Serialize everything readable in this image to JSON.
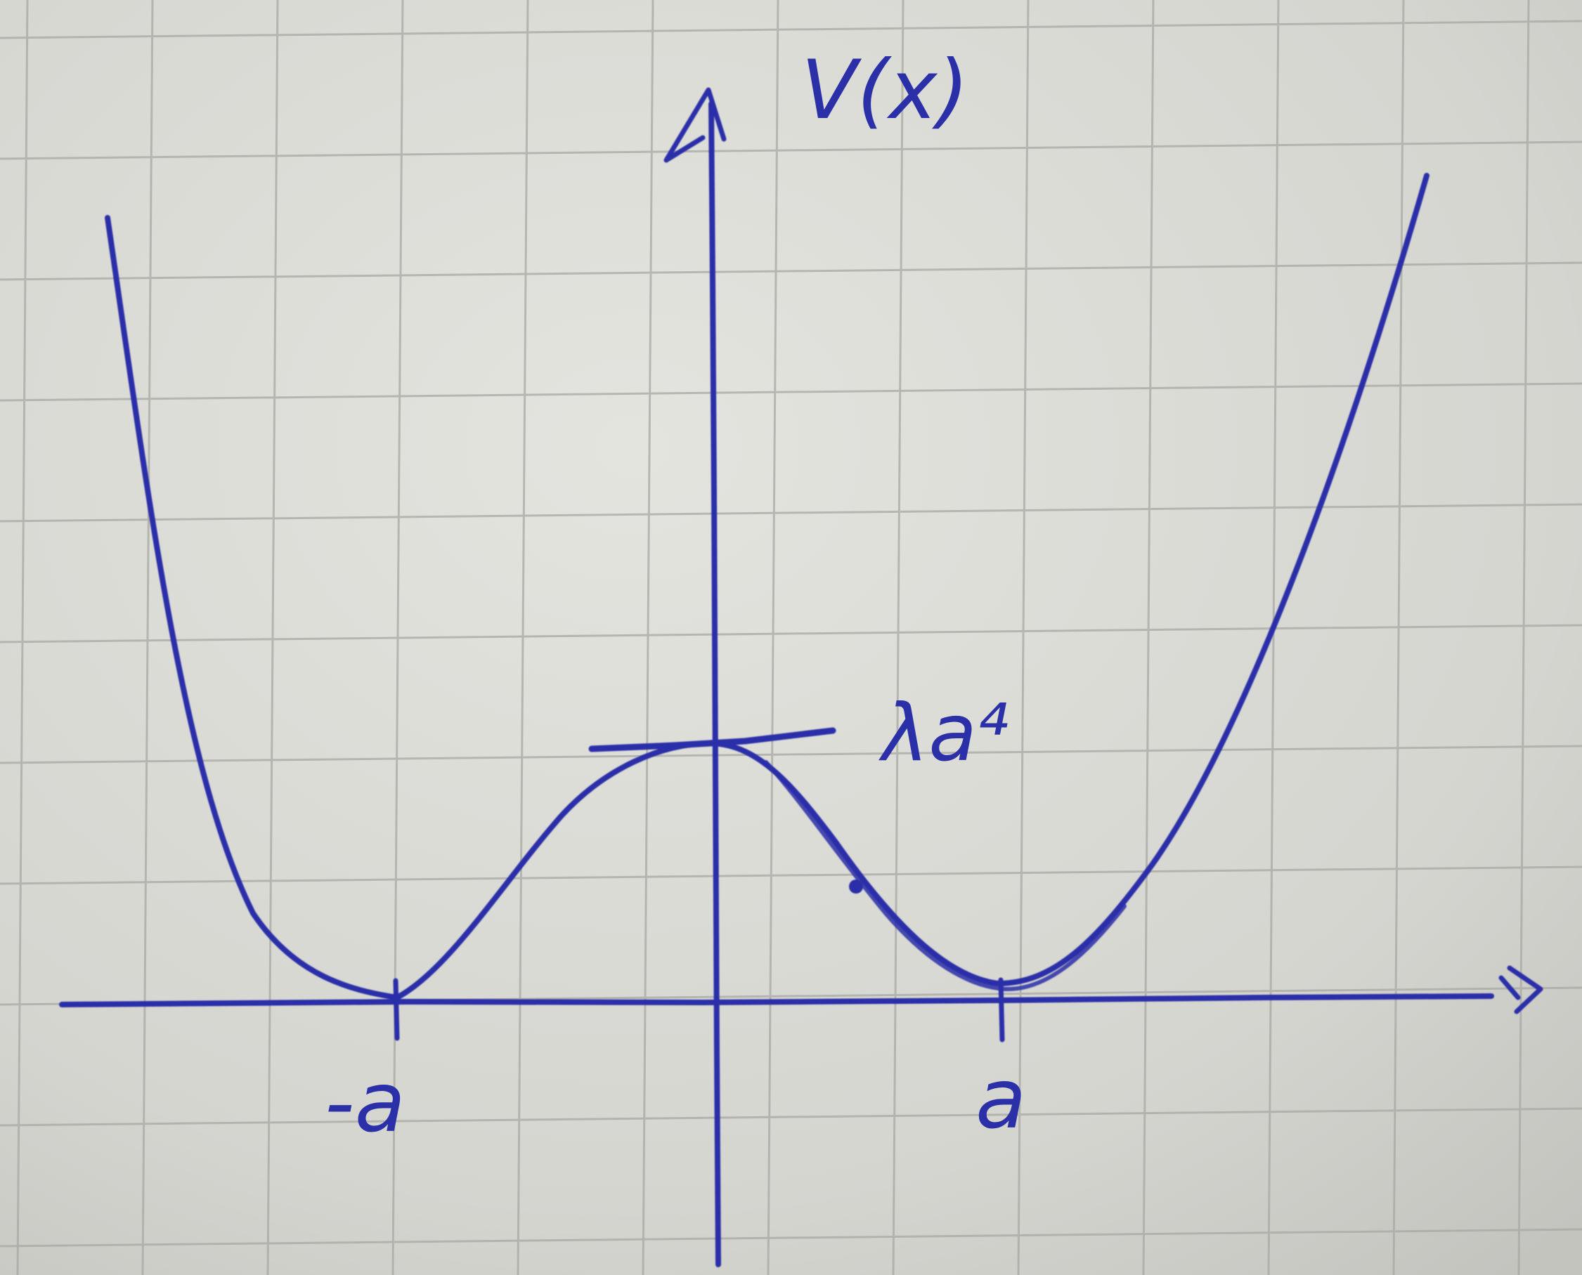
{
  "colors": {
    "ink": "#2b2fa8",
    "paper": "#dcdcd7",
    "paper_shade": "#cfcfca",
    "grid": "#a8a8a4"
  },
  "axes": {
    "y_label": "V(x)",
    "x_label": ""
  },
  "annotations": {
    "barrier_height": "λa⁴",
    "left_min": "-a",
    "right_min": "a"
  },
  "curve": {
    "type": "double-well potential",
    "minima_x": [
      -1,
      1
    ],
    "barrier_x": 0,
    "min_value": 0
  }
}
